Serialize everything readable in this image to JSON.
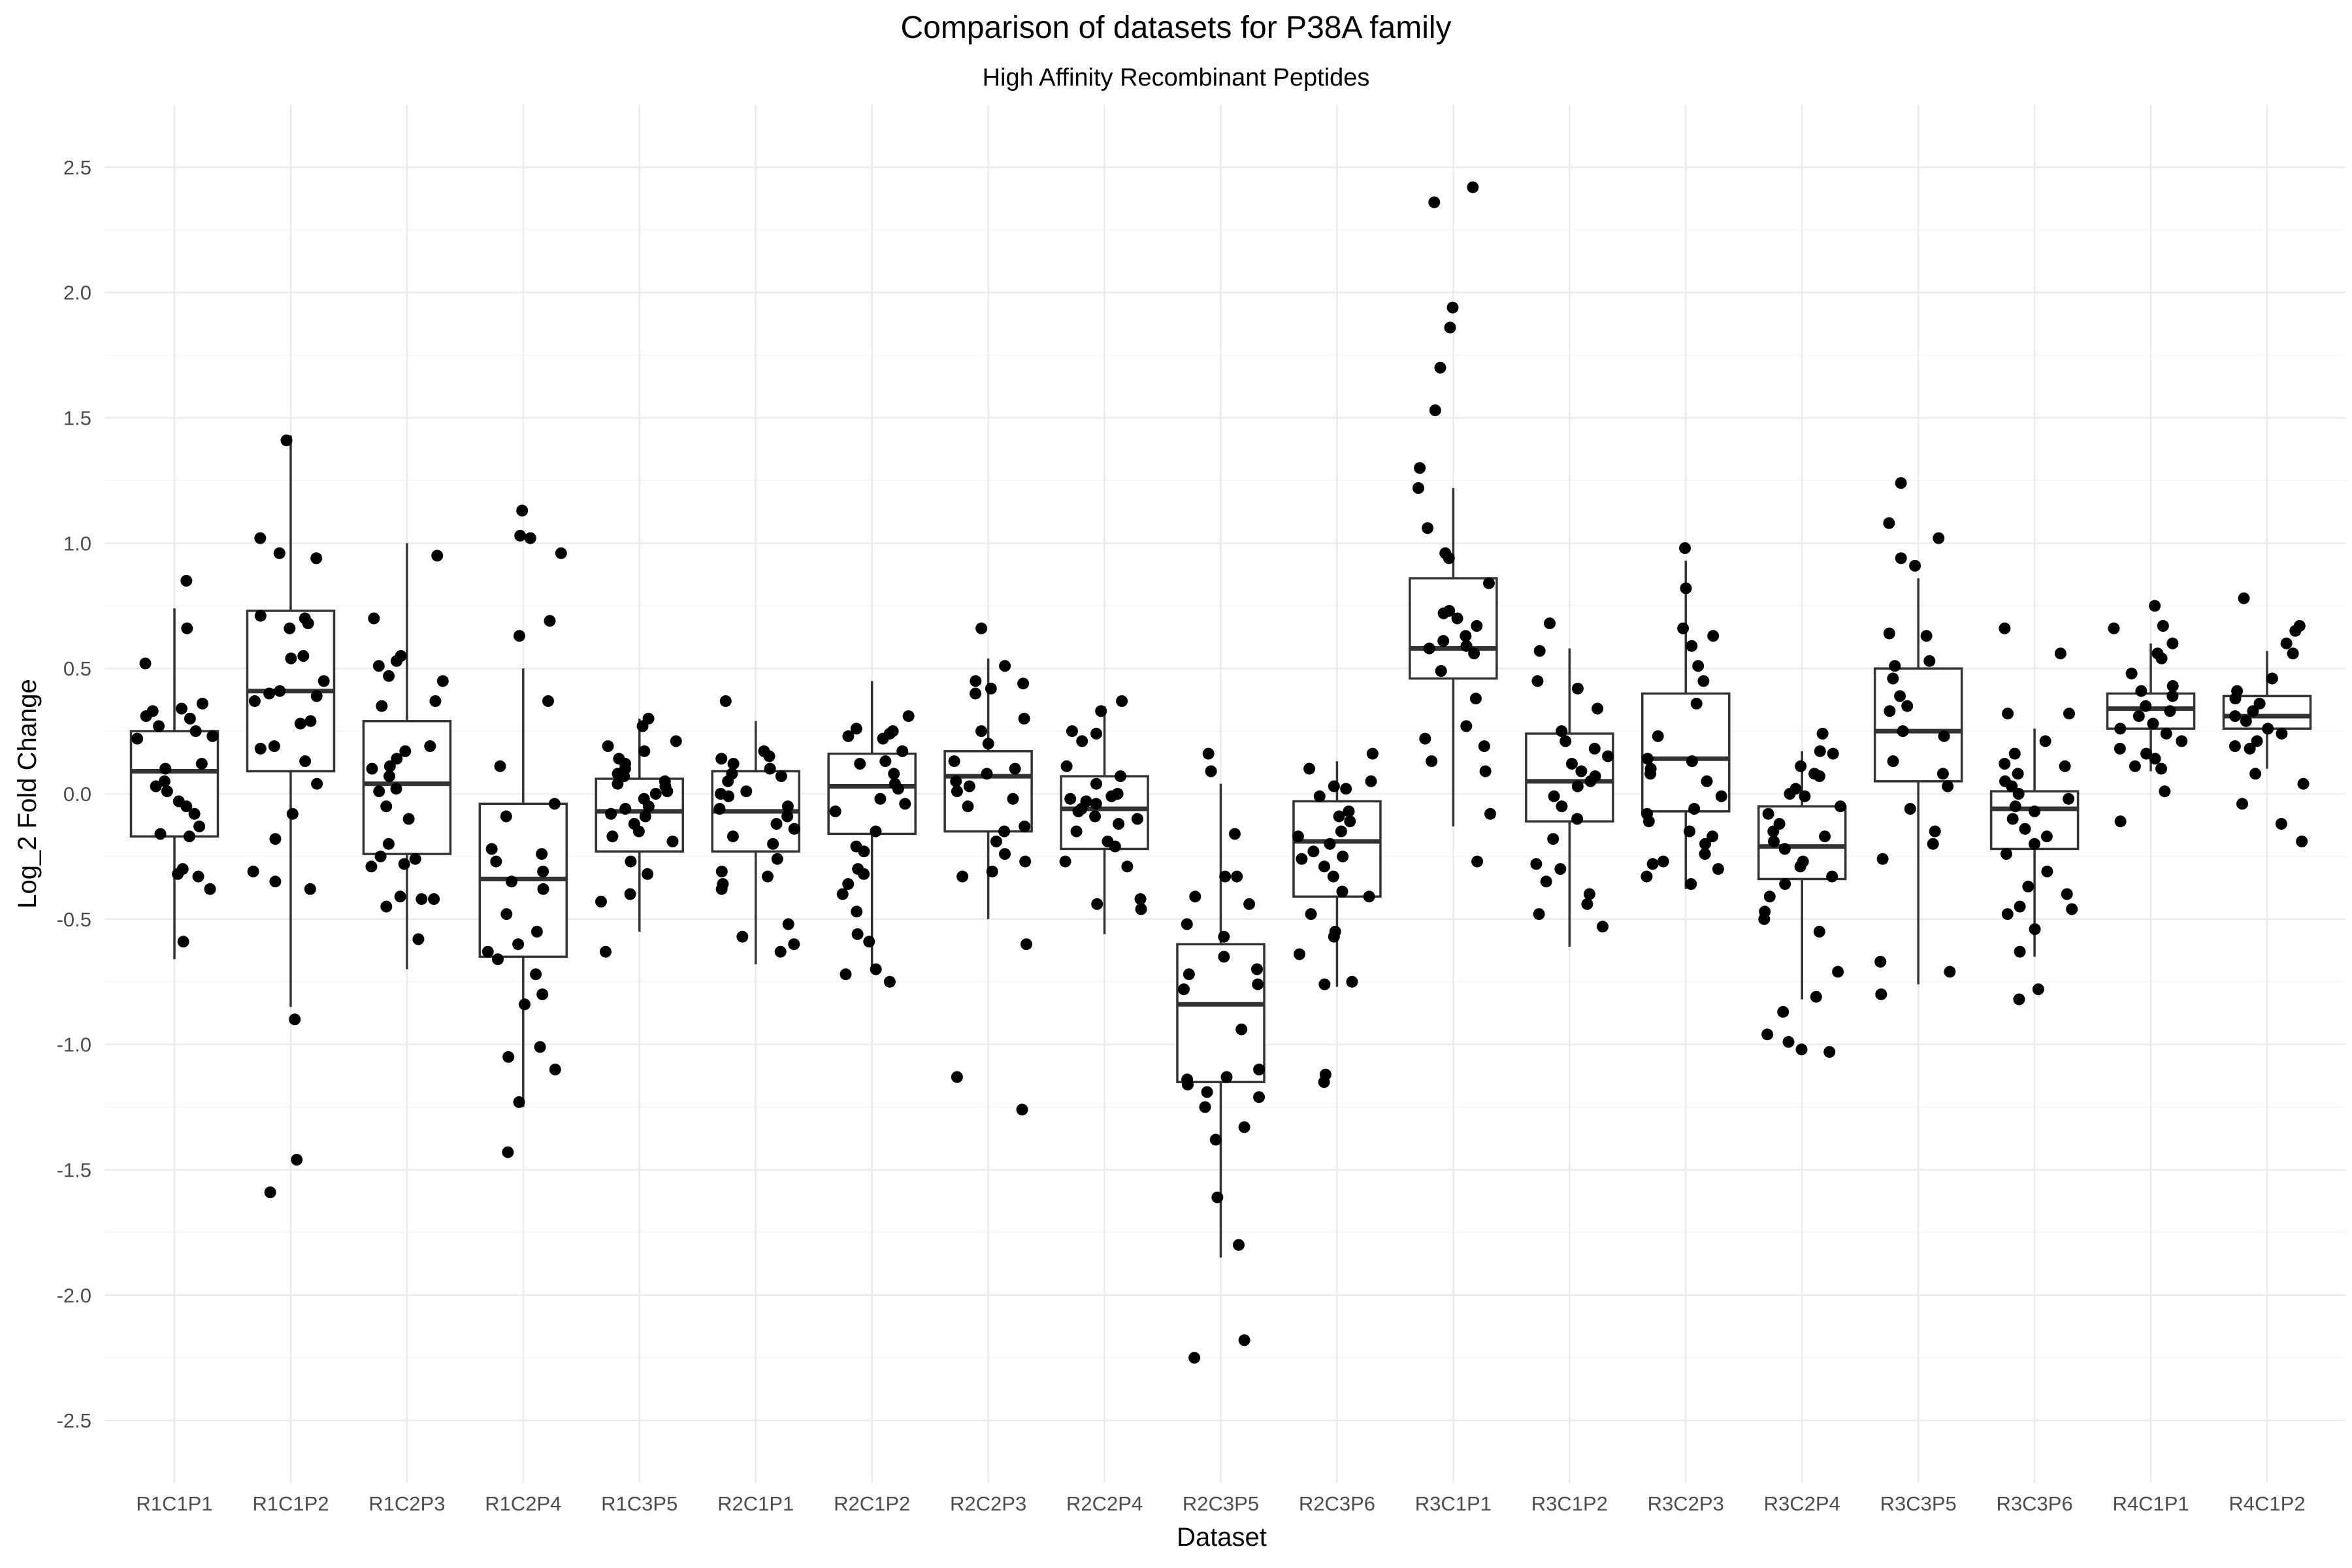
{
  "chart_data": {
    "type": "box",
    "title": "Comparison of datasets for P38A family",
    "subtitle": "High Affinity Recombinant Peptides",
    "xlabel": "Dataset",
    "ylabel": "Log_2 Fold Change",
    "ylim": [
      -2.75,
      2.75
    ],
    "y_ticks": [
      2.5,
      2.0,
      1.5,
      1.0,
      0.5,
      0.0,
      -0.5,
      -1.0,
      -1.5,
      -2.0,
      -2.5
    ],
    "y_tick_labels": [
      "2.5",
      "2.0",
      "1.5",
      "1.0",
      "0.5",
      "0.0",
      "-0.5",
      "-1.0",
      "-1.5",
      "-2.0",
      "-2.5"
    ],
    "grid": true,
    "legend": "none",
    "colors": {
      "box_stroke": "#333333",
      "points": "#000000",
      "grid": "#ebebeb"
    },
    "categories": [
      "R1C1P1",
      "R1C1P2",
      "R1C2P3",
      "R1C2P4",
      "R1C3P5",
      "R2C1P1",
      "R2C1P2",
      "R2C2P3",
      "R2C2P4",
      "R2C3P5",
      "R2C3P6",
      "R3C1P1",
      "R3C1P2",
      "R3C2P3",
      "R3C2P4",
      "R3C3P5",
      "R3C3P6",
      "R4C1P1",
      "R4C1P2"
    ],
    "boxes": [
      {
        "whisker_low": -0.66,
        "q1": -0.17,
        "median": 0.09,
        "q3": 0.25,
        "whisker_high": 0.74
      },
      {
        "whisker_low": -0.85,
        "q1": 0.09,
        "median": 0.41,
        "q3": 0.73,
        "whisker_high": 1.43
      },
      {
        "whisker_low": -0.7,
        "q1": -0.24,
        "median": 0.04,
        "q3": 0.29,
        "whisker_high": 1.0
      },
      {
        "whisker_low": -1.25,
        "q1": -0.65,
        "median": -0.34,
        "q3": -0.04,
        "whisker_high": 0.5
      },
      {
        "whisker_low": -0.55,
        "q1": -0.23,
        "median": -0.07,
        "q3": 0.06,
        "whisker_high": 0.3
      },
      {
        "whisker_low": -0.68,
        "q1": -0.23,
        "median": -0.07,
        "q3": 0.09,
        "whisker_high": 0.29
      },
      {
        "whisker_low": -0.7,
        "q1": -0.16,
        "median": 0.03,
        "q3": 0.16,
        "whisker_high": 0.45
      },
      {
        "whisker_low": -0.5,
        "q1": -0.15,
        "median": 0.07,
        "q3": 0.17,
        "whisker_high": 0.54
      },
      {
        "whisker_low": -0.56,
        "q1": -0.22,
        "median": -0.06,
        "q3": 0.07,
        "whisker_high": 0.35
      },
      {
        "whisker_low": -1.85,
        "q1": -1.15,
        "median": -0.84,
        "q3": -0.6,
        "whisker_high": 0.04
      },
      {
        "whisker_low": -0.77,
        "q1": -0.41,
        "median": -0.19,
        "q3": -0.03,
        "whisker_high": 0.13
      },
      {
        "whisker_low": -0.13,
        "q1": 0.46,
        "median": 0.58,
        "q3": 0.86,
        "whisker_high": 1.22
      },
      {
        "whisker_low": -0.61,
        "q1": -0.11,
        "median": 0.05,
        "q3": 0.24,
        "whisker_high": 0.58
      },
      {
        "whisker_low": -0.38,
        "q1": -0.07,
        "median": 0.14,
        "q3": 0.4,
        "whisker_high": 0.93
      },
      {
        "whisker_low": -0.82,
        "q1": -0.34,
        "median": -0.21,
        "q3": -0.05,
        "whisker_high": 0.17
      },
      {
        "whisker_low": -0.76,
        "q1": 0.05,
        "median": 0.25,
        "q3": 0.5,
        "whisker_high": 0.86
      },
      {
        "whisker_low": -0.65,
        "q1": -0.22,
        "median": -0.06,
        "q3": 0.01,
        "whisker_high": 0.26
      },
      {
        "whisker_low": 0.09,
        "q1": 0.26,
        "median": 0.34,
        "q3": 0.4,
        "whisker_high": 0.6
      },
      {
        "whisker_low": 0.1,
        "q1": 0.26,
        "median": 0.31,
        "q3": 0.39,
        "whisker_high": 0.57
      }
    ],
    "points": [
      [
        0.85,
        0.66,
        0.52,
        0.36,
        0.34,
        0.33,
        0.31,
        0.3,
        0.27,
        0.25,
        0.23,
        0.22,
        0.12,
        0.1,
        0.05,
        0.03,
        0.01,
        -0.03,
        -0.05,
        -0.08,
        -0.13,
        -0.16,
        -0.17,
        -0.3,
        -0.32,
        -0.33,
        -0.38,
        -0.59
      ],
      [
        1.41,
        1.02,
        0.96,
        0.94,
        0.71,
        0.7,
        0.68,
        0.66,
        0.55,
        0.54,
        0.45,
        0.41,
        0.4,
        0.39,
        0.37,
        0.29,
        0.28,
        0.19,
        0.18,
        0.13,
        0.04,
        -0.08,
        -0.18,
        -0.31,
        -0.35,
        -0.38,
        -0.9,
        -1.46,
        -1.59
      ],
      [
        0.95,
        0.7,
        0.55,
        0.53,
        0.51,
        0.47,
        0.45,
        0.37,
        0.35,
        0.19,
        0.17,
        0.14,
        0.11,
        0.1,
        0.07,
        0.02,
        0.01,
        -0.05,
        -0.1,
        -0.2,
        -0.25,
        -0.26,
        -0.28,
        -0.29,
        -0.41,
        -0.42,
        -0.42,
        -0.45,
        -0.58
      ],
      [
        1.13,
        1.03,
        1.02,
        0.96,
        0.69,
        0.63,
        0.37,
        0.11,
        -0.04,
        -0.09,
        -0.22,
        -0.24,
        -0.27,
        -0.31,
        -0.35,
        -0.38,
        -0.48,
        -0.55,
        -0.6,
        -0.63,
        -0.66,
        -0.72,
        -0.8,
        -0.84,
        -1.01,
        -1.05,
        -1.1,
        -1.23,
        -1.43
      ],
      [
        0.3,
        0.27,
        0.21,
        0.19,
        0.17,
        0.14,
        0.12,
        0.1,
        0.08,
        0.07,
        0.05,
        0.04,
        0.03,
        0.01,
        0.0,
        -0.02,
        -0.05,
        -0.06,
        -0.08,
        -0.09,
        -0.12,
        -0.15,
        -0.17,
        -0.19,
        -0.27,
        -0.32,
        -0.4,
        -0.43,
        -0.63
      ],
      [
        0.37,
        0.17,
        0.15,
        0.14,
        0.12,
        0.1,
        0.08,
        0.07,
        0.05,
        0.01,
        0.0,
        -0.01,
        -0.05,
        -0.06,
        -0.09,
        -0.12,
        -0.14,
        -0.17,
        -0.2,
        -0.26,
        -0.31,
        -0.33,
        -0.36,
        -0.38,
        -0.52,
        -0.57,
        -0.6,
        -0.63
      ],
      [
        0.31,
        0.26,
        0.25,
        0.24,
        0.23,
        0.22,
        0.17,
        0.13,
        0.12,
        0.08,
        0.04,
        0.02,
        -0.02,
        -0.04,
        -0.07,
        -0.15,
        -0.21,
        -0.23,
        -0.3,
        -0.32,
        -0.36,
        -0.4,
        -0.47,
        -0.56,
        -0.59,
        -0.7,
        -0.72,
        -0.75
      ],
      [
        0.66,
        0.51,
        0.45,
        0.44,
        0.42,
        0.4,
        0.3,
        0.25,
        0.2,
        0.13,
        0.1,
        0.08,
        0.05,
        0.03,
        0.01,
        -0.02,
        -0.05,
        -0.13,
        -0.15,
        -0.19,
        -0.24,
        -0.27,
        -0.31,
        -0.33,
        -0.6,
        -1.13,
        -1.26
      ],
      [
        0.37,
        0.33,
        0.25,
        0.24,
        0.21,
        0.11,
        0.07,
        0.04,
        0.0,
        -0.01,
        -0.02,
        -0.03,
        -0.04,
        -0.06,
        -0.07,
        -0.09,
        -0.1,
        -0.12,
        -0.15,
        -0.19,
        -0.21,
        -0.27,
        -0.29,
        -0.42,
        -0.44,
        -0.46
      ],
      [
        0.16,
        0.09,
        -0.16,
        -0.33,
        -0.33,
        -0.41,
        -0.44,
        -0.52,
        -0.57,
        -0.65,
        -0.7,
        -0.72,
        -0.76,
        -0.78,
        -0.94,
        -1.1,
        -1.13,
        -1.14,
        -1.16,
        -1.19,
        -1.21,
        -1.25,
        -1.33,
        -1.38,
        -1.61,
        -1.8,
        -2.18,
        -2.25
      ],
      [
        0.16,
        0.1,
        0.05,
        0.03,
        0.02,
        -0.01,
        -0.07,
        -0.09,
        -0.11,
        -0.15,
        -0.17,
        -0.2,
        -0.23,
        -0.25,
        -0.26,
        -0.29,
        -0.33,
        -0.39,
        -0.41,
        -0.48,
        -0.55,
        -0.57,
        -0.64,
        -0.75,
        -0.76,
        -1.12,
        -1.15
      ],
      [
        2.42,
        2.36,
        1.94,
        1.86,
        1.7,
        1.53,
        1.3,
        1.22,
        1.06,
        0.96,
        0.94,
        0.84,
        0.73,
        0.72,
        0.7,
        0.67,
        0.63,
        0.61,
        0.59,
        0.58,
        0.56,
        0.49,
        0.38,
        0.27,
        0.22,
        0.19,
        0.13,
        0.09,
        -0.08,
        -0.27
      ],
      [
        0.68,
        0.57,
        0.45,
        0.42,
        0.34,
        0.25,
        0.21,
        0.18,
        0.15,
        0.12,
        0.09,
        0.07,
        0.05,
        0.03,
        -0.01,
        -0.05,
        -0.1,
        -0.18,
        -0.28,
        -0.3,
        -0.35,
        -0.4,
        -0.44,
        -0.48,
        -0.53
      ],
      [
        0.98,
        0.82,
        0.66,
        0.63,
        0.59,
        0.51,
        0.45,
        0.36,
        0.23,
        0.14,
        0.13,
        0.1,
        0.08,
        0.05,
        -0.01,
        -0.06,
        -0.08,
        -0.11,
        -0.15,
        -0.17,
        -0.2,
        -0.24,
        -0.27,
        -0.28,
        -0.3,
        -0.33,
        -0.36
      ],
      [
        0.24,
        0.17,
        0.16,
        0.11,
        0.08,
        0.07,
        0.02,
        0.0,
        -0.01,
        -0.05,
        -0.08,
        -0.12,
        -0.15,
        -0.17,
        -0.19,
        -0.22,
        -0.27,
        -0.29,
        -0.33,
        -0.36,
        -0.41,
        -0.47,
        -0.5,
        -0.55,
        -0.71,
        -0.81,
        -0.87,
        -0.96,
        -0.99,
        -1.02,
        -1.03
      ],
      [
        1.24,
        1.08,
        1.02,
        0.94,
        0.91,
        0.64,
        0.63,
        0.53,
        0.51,
        0.46,
        0.39,
        0.35,
        0.33,
        0.25,
        0.23,
        0.13,
        0.08,
        0.03,
        -0.06,
        -0.15,
        -0.2,
        -0.26,
        -0.67,
        -0.71,
        -0.8
      ],
      [
        0.66,
        0.56,
        0.32,
        0.32,
        0.21,
        0.16,
        0.12,
        0.11,
        0.08,
        0.05,
        0.03,
        0.0,
        -0.02,
        -0.05,
        -0.07,
        -0.1,
        -0.14,
        -0.17,
        -0.2,
        -0.24,
        -0.31,
        -0.37,
        -0.4,
        -0.45,
        -0.46,
        -0.48,
        -0.54,
        -0.63,
        -0.78,
        -0.82
      ],
      [
        0.75,
        0.67,
        0.66,
        0.6,
        0.56,
        0.54,
        0.48,
        0.43,
        0.41,
        0.39,
        0.35,
        0.33,
        0.31,
        0.28,
        0.26,
        0.24,
        0.21,
        0.18,
        0.16,
        0.14,
        0.11,
        0.1,
        0.01,
        -0.11
      ],
      [
        0.78,
        0.67,
        0.65,
        0.6,
        0.56,
        0.46,
        0.41,
        0.38,
        0.36,
        0.33,
        0.31,
        0.29,
        0.26,
        0.24,
        0.21,
        0.19,
        0.18,
        0.08,
        0.04,
        -0.04,
        -0.12,
        -0.19
      ]
    ]
  }
}
